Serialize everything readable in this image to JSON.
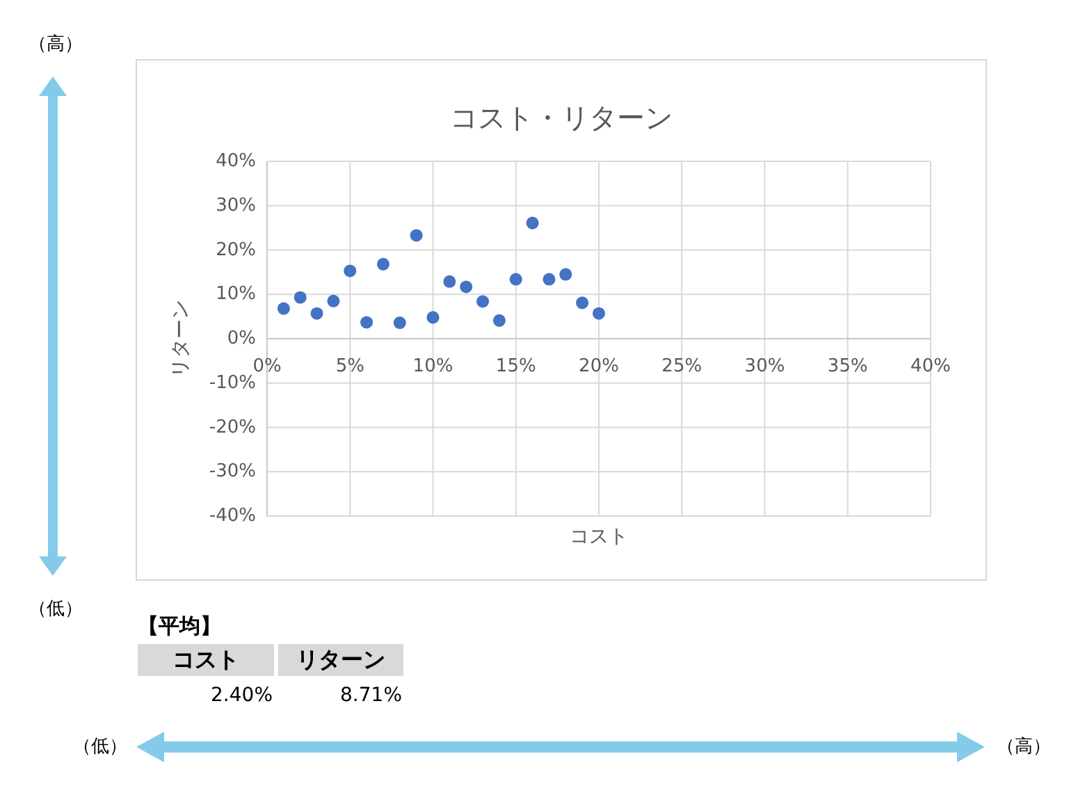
{
  "chart_data": {
    "type": "scatter",
    "title": "コスト・リターン",
    "xlabel": "コスト",
    "ylabel": "リターン",
    "x": [
      1,
      2,
      3,
      4,
      5,
      6,
      7,
      8,
      9,
      10,
      11,
      12,
      13,
      14,
      15,
      16,
      17,
      18,
      19,
      20
    ],
    "series": [
      {
        "color": "#4472c4",
        "values": [
          6.8,
          9.3,
          5.7,
          8.5,
          15.3,
          3.7,
          16.8,
          3.6,
          23.3,
          4.8,
          12.9,
          11.7,
          8.4,
          4.1,
          13.4,
          26.1,
          13.4,
          14.5,
          8.1,
          5.7
        ]
      }
    ],
    "xlim": [
      0,
      40
    ],
    "xticks": [
      {
        "value": 0,
        "label": "0%"
      },
      {
        "value": 5,
        "label": "5%"
      },
      {
        "value": 10,
        "label": "10%"
      },
      {
        "value": 15,
        "label": "15%"
      },
      {
        "value": 20,
        "label": "20%"
      },
      {
        "value": 25,
        "label": "25%"
      },
      {
        "value": 30,
        "label": "30%"
      },
      {
        "value": 35,
        "label": "35%"
      },
      {
        "value": 40,
        "label": "40%"
      }
    ],
    "ylim": [
      -40,
      40
    ],
    "yticks": [
      {
        "value": -40,
        "label": "-40%"
      },
      {
        "value": -30,
        "label": "-30%"
      },
      {
        "value": -20,
        "label": "-20%"
      },
      {
        "value": -10,
        "label": "-10%"
      },
      {
        "value": 0,
        "label": "0%"
      },
      {
        "value": 10,
        "label": "10%"
      },
      {
        "value": 20,
        "label": "20%"
      },
      {
        "value": 30,
        "label": "30%"
      },
      {
        "value": 40,
        "label": "40%"
      }
    ],
    "grid": true,
    "marker": "circle",
    "annotations": [
      "（高）",
      "（低）",
      "（低）",
      "（高）",
      "【平均】",
      "コスト",
      "リターン",
      "2.40%",
      "8.71%"
    ]
  }
}
